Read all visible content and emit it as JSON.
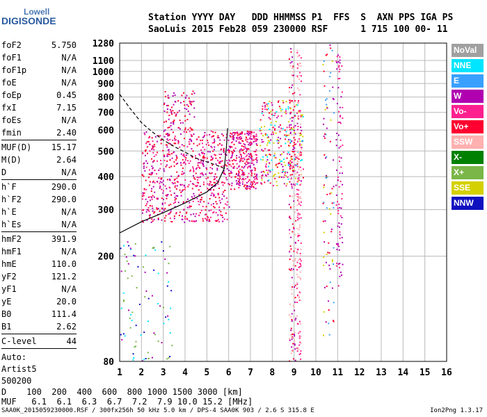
{
  "logo": {
    "line1": "Lowell",
    "line2": "DIGISONDE"
  },
  "header": {
    "line1": "Station YYYY DAY   DDD HHMMSS P1  FFS  S  AXN PPS IGA PS",
    "line2": "SaoLuis 2015 Feb28 059 230000 RSF      1 715 100 00- 11"
  },
  "params": {
    "group1": [
      {
        "name": "foF2",
        "value": "5.750"
      },
      {
        "name": "foF1",
        "value": "N/A"
      },
      {
        "name": "foF1p",
        "value": "N/A"
      },
      {
        "name": "foE",
        "value": "N/A"
      },
      {
        "name": "foEp",
        "value": "0.45"
      },
      {
        "name": "fxI",
        "value": "7.15"
      },
      {
        "name": "foEs",
        "value": "N/A"
      },
      {
        "name": "fmin",
        "value": "2.40"
      }
    ],
    "group2": [
      {
        "name": "MUF(D)",
        "value": "15.17"
      },
      {
        "name": "M(D)",
        "value": "2.64"
      },
      {
        "name": "D",
        "value": "N/A"
      }
    ],
    "group3": [
      {
        "name": "h`F",
        "value": "290.0"
      },
      {
        "name": "h`F2",
        "value": "290.0"
      },
      {
        "name": "h`E",
        "value": "N/A"
      },
      {
        "name": "h`Es",
        "value": "N/A"
      }
    ],
    "group4": [
      {
        "name": "hmF2",
        "value": "391.9"
      },
      {
        "name": "hmF1",
        "value": "N/A"
      },
      {
        "name": "hmE",
        "value": "110.0"
      },
      {
        "name": "yF2",
        "value": "121.2"
      },
      {
        "name": "yF1",
        "value": "N/A"
      },
      {
        "name": "yE",
        "value": "20.0"
      },
      {
        "name": "B0",
        "value": "111.4"
      },
      {
        "name": "B1",
        "value": "2.62"
      }
    ],
    "group5": [
      {
        "name": "C-level",
        "value": "44"
      }
    ],
    "auto": [
      "Auto:",
      "Artist5",
      "500200"
    ]
  },
  "legend": [
    {
      "label": "NoVal",
      "color": "#a0a0a0"
    },
    {
      "label": "NNE",
      "color": "#00e5ff"
    },
    {
      "label": "E",
      "color": "#3aa0ff"
    },
    {
      "label": "W",
      "color": "#b000b0"
    },
    {
      "label": "Vo-",
      "color": "#ff2090"
    },
    {
      "label": "Vo+",
      "color": "#ff0030"
    },
    {
      "label": "SSW",
      "color": "#ffb0b0"
    },
    {
      "label": "X-",
      "color": "#008000"
    },
    {
      "label": "X+",
      "color": "#7ab648"
    },
    {
      "label": "SSE",
      "color": "#d4d000"
    },
    {
      "label": "NNW",
      "color": "#1010c0"
    }
  ],
  "dmuf": {
    "d_line": "D    100  200  400  600  800 1000 1500 3000 [km]",
    "muf_line": "MUF   6.1  6.1  6.3  6.7  7.2  7.9 10.0 15.2 [MHz]"
  },
  "footer": {
    "left": "SAA0K_2015059230000.RSF / 300fx256h 50 kHz 5.0 km / DPS-4 SAA0K 903 / 2.6 S 315.8 E",
    "right": "Ion2Png 1.3.17"
  },
  "chart_data": {
    "type": "scatter",
    "title": "",
    "xlabel": "",
    "ylabel": "",
    "xlim": [
      1,
      16
    ],
    "ylim": [
      80,
      1280
    ],
    "yscale": "log",
    "grid": true,
    "xticks": [
      1,
      2,
      3,
      4,
      5,
      6,
      7,
      8,
      9,
      10,
      11,
      12,
      13,
      14,
      15,
      16
    ],
    "yticks": [
      80,
      200,
      300,
      400,
      500,
      600,
      700,
      800,
      900,
      1000,
      1100,
      1280
    ],
    "echo_regions": [
      {
        "name": "F-trace",
        "f_range": [
          2.0,
          6.0
        ],
        "h_range": [
          270,
          600
        ],
        "colors": [
          "#ff0030",
          "#ff2090",
          "#b000b0"
        ]
      },
      {
        "name": "spread-F",
        "f_range": [
          6.0,
          7.3
        ],
        "h_range": [
          360,
          600
        ],
        "colors": [
          "#ff0030",
          "#ff2090",
          "#b000b0"
        ]
      },
      {
        "name": "second-band",
        "f_range": [
          7.4,
          9.4
        ],
        "h_range": [
          370,
          780
        ],
        "colors": [
          "#ff0030",
          "#ff2090",
          "#b000b0",
          "#00e5ff",
          "#d4d000"
        ]
      },
      {
        "name": "high-echo",
        "f_range": [
          3.0,
          4.4
        ],
        "h_range": [
          600,
          850
        ],
        "colors": [
          "#ff0030",
          "#b000b0"
        ]
      },
      {
        "name": "vertical-streak-8.9",
        "f_range": [
          8.75,
          9.05
        ],
        "h_range": [
          80,
          1280
        ],
        "colors": [
          "#ffb0b0",
          "#ff0030",
          "#b000b0"
        ]
      },
      {
        "name": "vertical-streak-9.2",
        "f_range": [
          9.1,
          9.3
        ],
        "h_range": [
          80,
          1280
        ],
        "colors": [
          "#ffb0b0",
          "#ff2090"
        ]
      },
      {
        "name": "column-10.5",
        "f_range": [
          10.3,
          10.8
        ],
        "h_range": [
          100,
          1280
        ],
        "colors": [
          "#b000b0",
          "#ff0030",
          "#d4d000",
          "#3aa0ff"
        ]
      },
      {
        "name": "column-11",
        "f_range": [
          10.9,
          11.2
        ],
        "h_range": [
          150,
          1200
        ],
        "colors": [
          "#b000b0",
          "#ff2090"
        ]
      },
      {
        "name": "low-echoes",
        "f_range": [
          1.0,
          3.4
        ],
        "h_range": [
          80,
          230
        ],
        "colors": [
          "#1010c0",
          "#00e5ff",
          "#b000b0",
          "#7ab648"
        ]
      }
    ],
    "profile_curve": [
      [
        1.0,
        245
      ],
      [
        2.0,
        270
      ],
      [
        3.0,
        292
      ],
      [
        4.0,
        318
      ],
      [
        5.0,
        350
      ],
      [
        5.5,
        380
      ],
      [
        5.8,
        430
      ],
      [
        5.9,
        520
      ],
      [
        5.95,
        610
      ]
    ],
    "profile_dashed": [
      [
        1.0,
        820
      ],
      [
        1.5,
        720
      ],
      [
        2.0,
        640
      ],
      [
        2.5,
        590
      ],
      [
        3.0,
        550
      ],
      [
        3.5,
        520
      ],
      [
        4.0,
        495
      ],
      [
        4.5,
        470
      ],
      [
        5.0,
        455
      ],
      [
        5.5,
        440
      ],
      [
        5.8,
        430
      ]
    ]
  }
}
